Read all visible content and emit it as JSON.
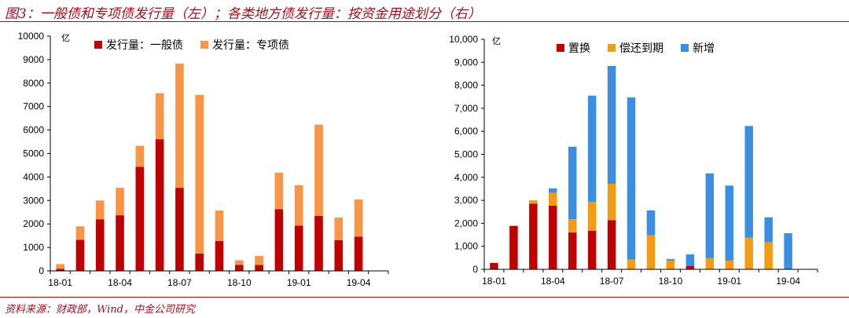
{
  "figure_title": "图3：一般债和专项债发行量（左）；各类地方债发行量：按资金用途划分（右）",
  "footer_note": "资料来源：财政部，Wind，中金公司研究",
  "colors": {
    "title_red": "#a0101a",
    "general": "#c00000",
    "special": "#f79646",
    "replace": "#c00000",
    "repay": "#f39c12",
    "new": "#3b8fe0"
  },
  "chart_data": [
    {
      "type": "bar",
      "stacked": true,
      "unit_label": "亿",
      "categories": [
        "18-01",
        "18-02",
        "18-03",
        "18-04",
        "18-05",
        "18-06",
        "18-07",
        "18-08",
        "18-09",
        "18-10",
        "18-11",
        "18-12",
        "19-01",
        "19-02",
        "19-03",
        "19-04",
        "19-05"
      ],
      "x_tick_labels": [
        "18-01",
        "18-04",
        "18-07",
        "18-10",
        "19-01",
        "19-04"
      ],
      "ylim": [
        0,
        10000
      ],
      "y_ticks": [
        0,
        1000,
        2000,
        3000,
        4000,
        5000,
        6000,
        7000,
        8000,
        9000,
        10000
      ],
      "y_tick_labels": [
        "0",
        "1000",
        "2000",
        "3000",
        "4000",
        "5000",
        "6000",
        "7000",
        "8000",
        "9000",
        "10000"
      ],
      "legend_position": "top",
      "series": [
        {
          "name": "发行量：一般债",
          "color": "#c00000",
          "values": [
            90,
            1320,
            2200,
            2370,
            4430,
            5610,
            3540,
            740,
            1270,
            260,
            250,
            2630,
            1930,
            2340,
            1310,
            1460,
            0
          ]
        },
        {
          "name": "发行量：专项债",
          "color": "#f79646",
          "values": [
            200,
            580,
            800,
            1170,
            900,
            1960,
            5290,
            6760,
            1300,
            190,
            390,
            1550,
            1720,
            3890,
            960,
            1580,
            0
          ]
        }
      ]
    },
    {
      "type": "bar",
      "stacked": true,
      "unit_label": "亿",
      "categories": [
        "18-01",
        "18-02",
        "18-03",
        "18-04",
        "18-05",
        "18-06",
        "18-07",
        "18-08",
        "18-09",
        "18-10",
        "18-11",
        "18-12",
        "19-01",
        "19-02",
        "19-03",
        "19-04",
        "19-05"
      ],
      "x_tick_labels": [
        "18-01",
        "18-04",
        "18-07",
        "18-10",
        "19-01",
        "19-04"
      ],
      "ylim": [
        0,
        10000
      ],
      "y_ticks": [
        0,
        1000,
        2000,
        3000,
        4000,
        5000,
        6000,
        7000,
        8000,
        9000,
        10000
      ],
      "y_tick_labels": [
        "0",
        "1,000",
        "2,000",
        "3,000",
        "4,000",
        "5,000",
        "6,000",
        "7,000",
        "8,000",
        "9,000",
        "10,000"
      ],
      "legend_position": "top",
      "series": [
        {
          "name": "置换",
          "color": "#c00000",
          "values": [
            280,
            1890,
            2850,
            2770,
            1600,
            1680,
            2140,
            0,
            0,
            0,
            150,
            0,
            0,
            0,
            0,
            0,
            0
          ]
        },
        {
          "name": "偿还到期",
          "color": "#f39c12",
          "values": [
            0,
            0,
            150,
            560,
            580,
            1250,
            1580,
            430,
            1480,
            380,
            0,
            490,
            380,
            1380,
            1180,
            0,
            0
          ]
        },
        {
          "name": "新增",
          "color": "#3b8fe0",
          "values": [
            0,
            0,
            0,
            190,
            3150,
            4620,
            5120,
            7040,
            1080,
            70,
            500,
            3680,
            3260,
            4850,
            1080,
            1570,
            0
          ]
        }
      ]
    }
  ]
}
